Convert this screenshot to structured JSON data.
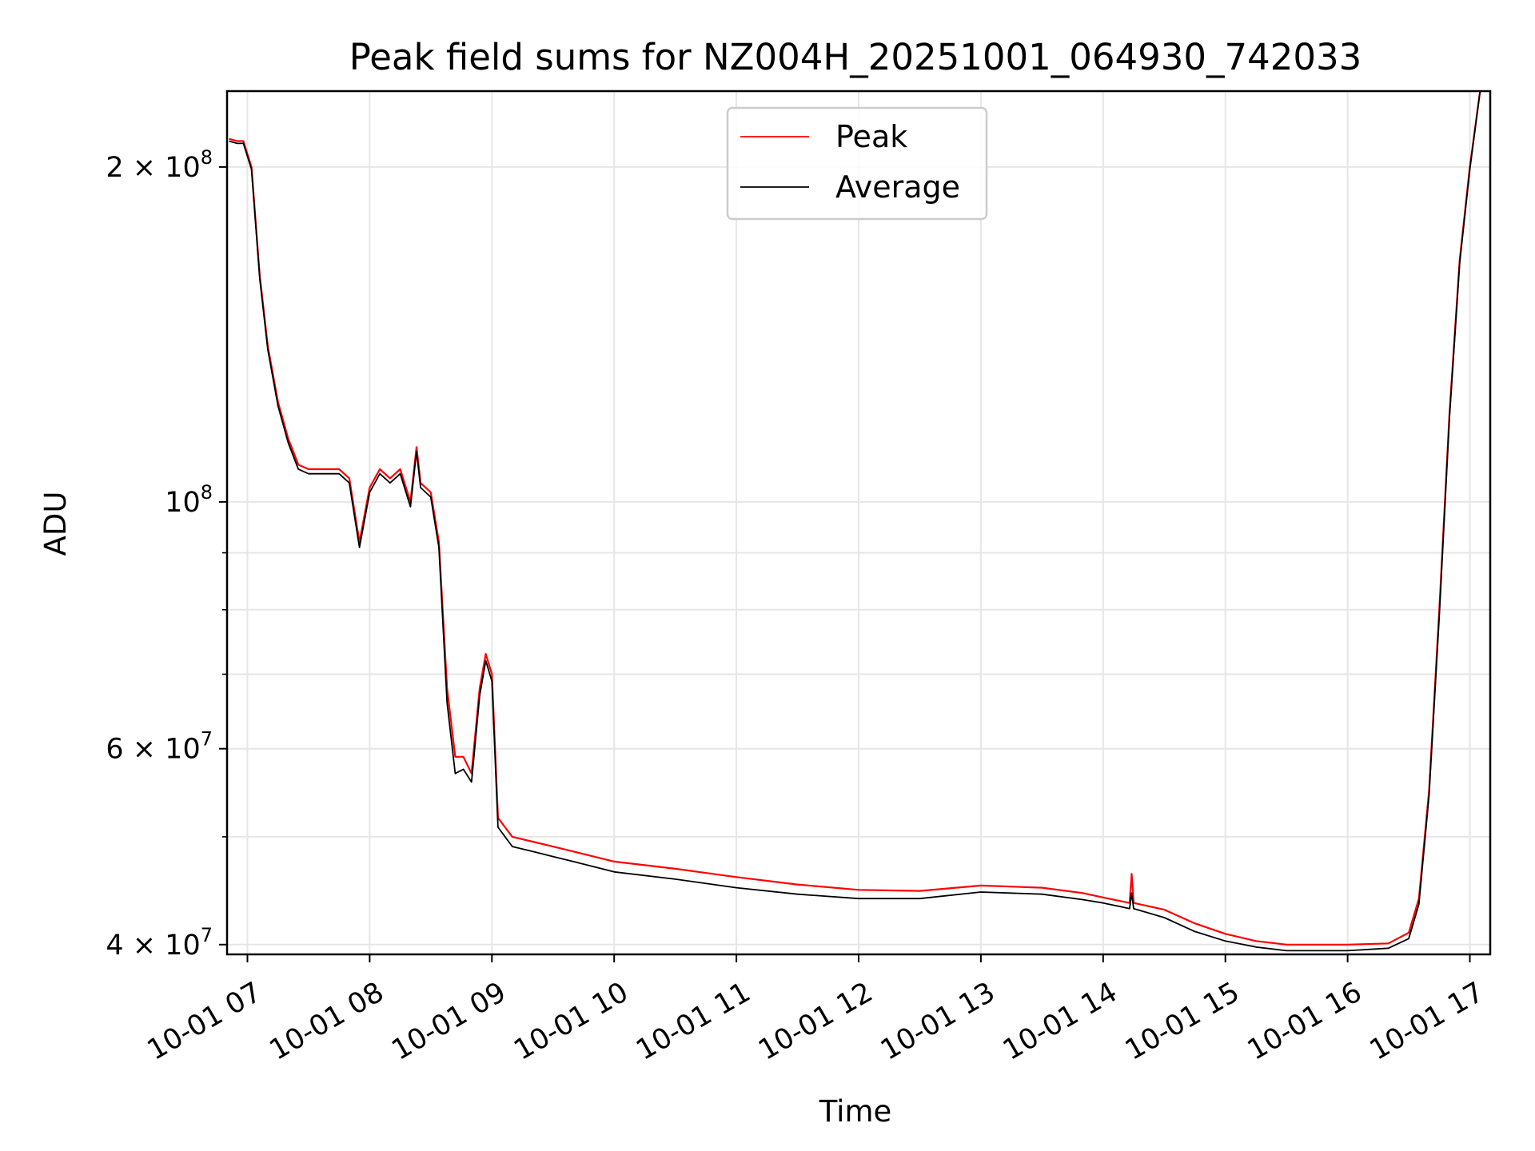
{
  "chart_data": {
    "type": "line",
    "title": "Peak field sums for NZ004H_20251001_064930_742033",
    "xlabel": "Time",
    "ylabel": "ADU",
    "yscale": "log",
    "grid": true,
    "legend_position": "top-center",
    "xlim": [
      "2025-10-01 06:50",
      "2025-10-01 17:10"
    ],
    "ylim": [
      39200000,
      234000000
    ],
    "x_ticks": [
      {
        "value": "2025-10-01 07:00",
        "label": "10-01 07"
      },
      {
        "value": "2025-10-01 08:00",
        "label": "10-01 08"
      },
      {
        "value": "2025-10-01 09:00",
        "label": "10-01 09"
      },
      {
        "value": "2025-10-01 10:00",
        "label": "10-01 10"
      },
      {
        "value": "2025-10-01 11:00",
        "label": "10-01 11"
      },
      {
        "value": "2025-10-01 12:00",
        "label": "10-01 12"
      },
      {
        "value": "2025-10-01 13:00",
        "label": "10-01 13"
      },
      {
        "value": "2025-10-01 14:00",
        "label": "10-01 14"
      },
      {
        "value": "2025-10-01 15:00",
        "label": "10-01 15"
      },
      {
        "value": "2025-10-01 16:00",
        "label": "10-01 16"
      },
      {
        "value": "2025-10-01 17:00",
        "label": "10-01 17"
      }
    ],
    "y_ticks": [
      {
        "value": 40000000,
        "base": "4 × 10",
        "exp": "7"
      },
      {
        "value": 60000000,
        "base": "6 × 10",
        "exp": "7"
      },
      {
        "value": 100000000,
        "base": "10",
        "exp": "8"
      },
      {
        "value": 200000000,
        "base": "2 × 10",
        "exp": "8"
      }
    ],
    "y_minor_ticks": [
      50000000,
      70000000,
      80000000,
      90000000
    ],
    "series": [
      {
        "name": "Peak",
        "color": "#ff0000",
        "points": [
          [
            "2025-10-01 06:51",
            212000000
          ],
          [
            "2025-10-01 06:55",
            211000000
          ],
          [
            "2025-10-01 06:58",
            211000000
          ],
          [
            "2025-10-01 07:02",
            200000000
          ],
          [
            "2025-10-01 07:06",
            160000000
          ],
          [
            "2025-10-01 07:10",
            138000000
          ],
          [
            "2025-10-01 07:15",
            123000000
          ],
          [
            "2025-10-01 07:20",
            114000000
          ],
          [
            "2025-10-01 07:25",
            108000000
          ],
          [
            "2025-10-01 07:30",
            107000000
          ],
          [
            "2025-10-01 07:35",
            107000000
          ],
          [
            "2025-10-01 07:40",
            107000000
          ],
          [
            "2025-10-01 07:45",
            107000000
          ],
          [
            "2025-10-01 07:50",
            105000000
          ],
          [
            "2025-10-01 07:55",
            92000000
          ],
          [
            "2025-10-01 08:00",
            103000000
          ],
          [
            "2025-10-01 08:05",
            107000000
          ],
          [
            "2025-10-01 08:10",
            105000000
          ],
          [
            "2025-10-01 08:15",
            107000000
          ],
          [
            "2025-10-01 08:20",
            100000000
          ],
          [
            "2025-10-01 08:23",
            112000000
          ],
          [
            "2025-10-01 08:25",
            104000000
          ],
          [
            "2025-10-01 08:30",
            102000000
          ],
          [
            "2025-10-01 08:34",
            92000000
          ],
          [
            "2025-10-01 08:38",
            68000000
          ],
          [
            "2025-10-01 08:42",
            59000000
          ],
          [
            "2025-10-01 08:46",
            59000000
          ],
          [
            "2025-10-01 08:50",
            57000000
          ],
          [
            "2025-10-01 08:54",
            68000000
          ],
          [
            "2025-10-01 08:57",
            73000000
          ],
          [
            "2025-10-01 09:00",
            70000000
          ],
          [
            "2025-10-01 09:03",
            52000000
          ],
          [
            "2025-10-01 09:10",
            50000000
          ],
          [
            "2025-10-01 09:20",
            49500000
          ],
          [
            "2025-10-01 09:30",
            49000000
          ],
          [
            "2025-10-01 09:40",
            48500000
          ],
          [
            "2025-10-01 10:00",
            47500000
          ],
          [
            "2025-10-01 10:30",
            46800000
          ],
          [
            "2025-10-01 11:00",
            46000000
          ],
          [
            "2025-10-01 11:30",
            45300000
          ],
          [
            "2025-10-01 12:00",
            44800000
          ],
          [
            "2025-10-01 12:30",
            44700000
          ],
          [
            "2025-10-01 13:00",
            45200000
          ],
          [
            "2025-10-01 13:30",
            45000000
          ],
          [
            "2025-10-01 13:50",
            44500000
          ],
          [
            "2025-10-01 14:00",
            44100000
          ],
          [
            "2025-10-01 14:13",
            43600000
          ],
          [
            "2025-10-01 14:14",
            46300000
          ],
          [
            "2025-10-01 14:15",
            43600000
          ],
          [
            "2025-10-01 14:30",
            43000000
          ],
          [
            "2025-10-01 14:45",
            41800000
          ],
          [
            "2025-10-01 15:00",
            40900000
          ],
          [
            "2025-10-01 15:15",
            40300000
          ],
          [
            "2025-10-01 15:30",
            40000000
          ],
          [
            "2025-10-01 15:45",
            40000000
          ],
          [
            "2025-10-01 16:00",
            40000000
          ],
          [
            "2025-10-01 16:20",
            40100000
          ],
          [
            "2025-10-01 16:30",
            41000000
          ],
          [
            "2025-10-01 16:35",
            44000000
          ],
          [
            "2025-10-01 16:40",
            55000000
          ],
          [
            "2025-10-01 16:45",
            80000000
          ],
          [
            "2025-10-01 16:50",
            120000000
          ],
          [
            "2025-10-01 16:55",
            165000000
          ],
          [
            "2025-10-01 17:00",
            200000000
          ],
          [
            "2025-10-01 17:05",
            234000000
          ]
        ]
      },
      {
        "name": "Average",
        "color": "#000000",
        "points": [
          [
            "2025-10-01 06:51",
            211000000
          ],
          [
            "2025-10-01 06:55",
            210000000
          ],
          [
            "2025-10-01 06:58",
            210000000
          ],
          [
            "2025-10-01 07:02",
            199000000
          ],
          [
            "2025-10-01 07:06",
            159000000
          ],
          [
            "2025-10-01 07:10",
            137000000
          ],
          [
            "2025-10-01 07:15",
            122000000
          ],
          [
            "2025-10-01 07:20",
            113000000
          ],
          [
            "2025-10-01 07:25",
            107000000
          ],
          [
            "2025-10-01 07:30",
            106000000
          ],
          [
            "2025-10-01 07:35",
            106000000
          ],
          [
            "2025-10-01 07:40",
            106000000
          ],
          [
            "2025-10-01 07:45",
            106000000
          ],
          [
            "2025-10-01 07:50",
            104000000
          ],
          [
            "2025-10-01 07:55",
            91000000
          ],
          [
            "2025-10-01 08:00",
            102000000
          ],
          [
            "2025-10-01 08:05",
            106000000
          ],
          [
            "2025-10-01 08:10",
            104000000
          ],
          [
            "2025-10-01 08:15",
            106000000
          ],
          [
            "2025-10-01 08:20",
            99000000
          ],
          [
            "2025-10-01 08:23",
            111000000
          ],
          [
            "2025-10-01 08:25",
            103000000
          ],
          [
            "2025-10-01 08:30",
            101000000
          ],
          [
            "2025-10-01 08:34",
            91000000
          ],
          [
            "2025-10-01 08:38",
            66000000
          ],
          [
            "2025-10-01 08:42",
            57000000
          ],
          [
            "2025-10-01 08:46",
            57500000
          ],
          [
            "2025-10-01 08:50",
            56000000
          ],
          [
            "2025-10-01 08:54",
            67000000
          ],
          [
            "2025-10-01 08:57",
            72000000
          ],
          [
            "2025-10-01 09:00",
            69000000
          ],
          [
            "2025-10-01 09:03",
            51000000
          ],
          [
            "2025-10-01 09:10",
            49000000
          ],
          [
            "2025-10-01 09:20",
            48500000
          ],
          [
            "2025-10-01 09:30",
            48000000
          ],
          [
            "2025-10-01 09:40",
            47500000
          ],
          [
            "2025-10-01 10:00",
            46500000
          ],
          [
            "2025-10-01 10:30",
            45800000
          ],
          [
            "2025-10-01 11:00",
            45000000
          ],
          [
            "2025-10-01 11:30",
            44400000
          ],
          [
            "2025-10-01 12:00",
            44000000
          ],
          [
            "2025-10-01 12:30",
            44000000
          ],
          [
            "2025-10-01 13:00",
            44600000
          ],
          [
            "2025-10-01 13:30",
            44400000
          ],
          [
            "2025-10-01 13:50",
            43900000
          ],
          [
            "2025-10-01 14:00",
            43600000
          ],
          [
            "2025-10-01 14:13",
            43100000
          ],
          [
            "2025-10-01 14:14",
            44500000
          ],
          [
            "2025-10-01 14:15",
            43100000
          ],
          [
            "2025-10-01 14:30",
            42300000
          ],
          [
            "2025-10-01 14:45",
            41100000
          ],
          [
            "2025-10-01 15:00",
            40300000
          ],
          [
            "2025-10-01 15:15",
            39800000
          ],
          [
            "2025-10-01 15:30",
            39500000
          ],
          [
            "2025-10-01 15:45",
            39500000
          ],
          [
            "2025-10-01 16:00",
            39500000
          ],
          [
            "2025-10-01 16:20",
            39700000
          ],
          [
            "2025-10-01 16:30",
            40500000
          ],
          [
            "2025-10-01 16:35",
            43500000
          ],
          [
            "2025-10-01 16:40",
            54500000
          ],
          [
            "2025-10-01 16:45",
            79000000
          ],
          [
            "2025-10-01 16:50",
            119000000
          ],
          [
            "2025-10-01 16:55",
            164000000
          ],
          [
            "2025-10-01 17:00",
            199000000
          ],
          [
            "2025-10-01 17:05",
            234000000
          ]
        ]
      }
    ]
  }
}
